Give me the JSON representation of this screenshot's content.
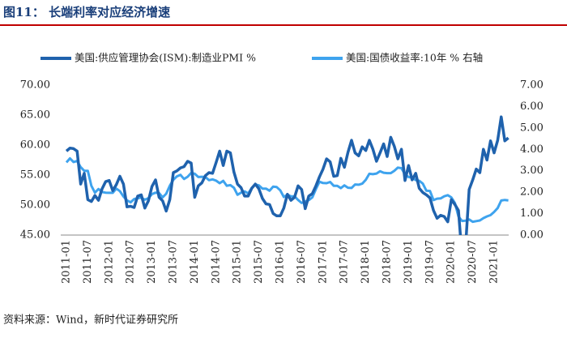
{
  "chart_data": {
    "type": "line",
    "title": "图11： 长端利率对应经济增速",
    "source": "资料来源：Wind，新时代证券研究所",
    "categories": [
      "2011-01",
      null,
      null,
      null,
      null,
      null,
      "2011-07",
      null,
      null,
      null,
      null,
      null,
      "2012-01",
      null,
      null,
      null,
      null,
      null,
      "2012-07",
      null,
      null,
      null,
      null,
      null,
      "2013-01",
      null,
      null,
      null,
      null,
      null,
      "2013-07",
      null,
      null,
      null,
      null,
      null,
      "2014-01",
      null,
      null,
      null,
      null,
      null,
      "2014-07",
      null,
      null,
      null,
      null,
      null,
      "2015-01",
      null,
      null,
      null,
      null,
      null,
      "2015-07",
      null,
      null,
      null,
      null,
      null,
      "2016-01",
      null,
      null,
      null,
      null,
      null,
      "2016-07",
      null,
      null,
      null,
      null,
      null,
      "2017-01",
      null,
      null,
      null,
      null,
      null,
      "2017-07",
      null,
      null,
      null,
      null,
      null,
      "2018-01",
      null,
      null,
      null,
      null,
      null,
      "2018-07",
      null,
      null,
      null,
      null,
      null,
      "2019-01",
      null,
      null,
      null,
      null,
      null,
      "2019-07",
      null,
      null,
      null,
      null,
      null,
      "2020-01",
      null,
      null,
      null,
      null,
      null,
      "2020-07",
      null,
      null,
      null,
      null,
      null,
      "2021-01",
      null,
      null,
      null,
      null
    ],
    "series": [
      {
        "name": "美国:供应管理协会(ISM):制造业PMI %",
        "color": "#1f62ad",
        "axis": "y",
        "values": [
          59.0,
          59.5,
          59.4,
          59.0,
          53.5,
          55.3,
          50.9,
          50.6,
          51.6,
          50.8,
          52.7,
          53.9,
          54.1,
          52.4,
          53.4,
          54.8,
          53.5,
          49.7,
          49.8,
          49.6,
          51.5,
          51.7,
          49.5,
          50.7,
          53.1,
          54.2,
          51.3,
          50.7,
          49.0,
          50.9,
          55.4,
          55.7,
          56.2,
          56.4,
          57.3,
          57.0,
          51.3,
          53.2,
          53.7,
          54.9,
          55.4,
          55.3,
          57.1,
          59.0,
          56.6,
          59.0,
          58.7,
          55.5,
          53.5,
          52.9,
          51.5,
          51.5,
          52.8,
          53.5,
          52.7,
          51.1,
          50.2,
          50.1,
          48.6,
          48.2,
          48.2,
          49.5,
          51.8,
          50.8,
          51.3,
          53.2,
          52.6,
          49.4,
          51.5,
          51.9,
          53.2,
          54.7,
          56.0,
          57.7,
          57.2,
          54.8,
          54.9,
          57.8,
          56.3,
          58.8,
          60.8,
          58.7,
          58.2,
          59.7,
          59.1,
          60.8,
          59.3,
          57.3,
          58.7,
          60.2,
          58.1,
          61.3,
          59.8,
          57.7,
          59.3,
          54.1,
          56.6,
          54.2,
          55.3,
          52.8,
          52.1,
          51.7,
          51.2,
          49.1,
          47.8,
          48.3,
          48.1,
          47.2,
          50.9,
          50.1,
          49.1,
          41.5,
          43.1,
          52.6,
          54.2,
          56.0,
          55.4,
          59.3,
          57.5,
          60.7,
          58.7,
          60.8,
          64.7,
          60.7,
          61.2
        ]
      },
      {
        "name": "美国:国债收益率:10年 % 右轴",
        "color": "#3ea3ee",
        "axis": "y2",
        "values": [
          3.39,
          3.58,
          3.41,
          3.46,
          3.17,
          3.0,
          3.0,
          2.3,
          1.98,
          2.15,
          2.01,
          1.98,
          1.97,
          1.97,
          2.17,
          2.05,
          1.8,
          1.62,
          1.53,
          1.68,
          1.72,
          1.75,
          1.65,
          1.72,
          1.91,
          1.98,
          1.96,
          1.76,
          1.93,
          2.3,
          2.58,
          2.74,
          2.81,
          2.62,
          2.72,
          2.9,
          2.86,
          2.71,
          2.72,
          2.71,
          2.56,
          2.6,
          2.54,
          2.42,
          2.53,
          2.3,
          2.33,
          2.21,
          1.88,
          1.98,
          2.04,
          1.94,
          2.2,
          2.36,
          2.32,
          2.17,
          2.17,
          2.07,
          2.26,
          2.24,
          2.09,
          1.78,
          1.89,
          1.81,
          1.81,
          1.64,
          1.5,
          1.56,
          1.63,
          1.76,
          2.14,
          2.49,
          2.43,
          2.42,
          2.48,
          2.3,
          2.3,
          2.19,
          2.32,
          2.21,
          2.2,
          2.36,
          2.35,
          2.4,
          2.58,
          2.86,
          2.84,
          2.87,
          2.98,
          2.91,
          2.89,
          2.89,
          3.0,
          3.15,
          3.12,
          2.83,
          2.71,
          2.68,
          2.57,
          2.53,
          2.4,
          2.07,
          2.06,
          1.63,
          1.7,
          1.71,
          1.81,
          1.86,
          1.76,
          1.5,
          0.87,
          0.66,
          0.67,
          0.73,
          0.62,
          0.65,
          0.68,
          0.79,
          0.87,
          0.93,
          1.08,
          1.26,
          1.61,
          1.64,
          1.62
        ]
      }
    ],
    "ylim": [
      45,
      70
    ],
    "yticks": [
      {
        "value": 45,
        "label": "45.00"
      },
      {
        "value": 50,
        "label": "50.00"
      },
      {
        "value": 55,
        "label": "55.00"
      },
      {
        "value": 60,
        "label": "60.00"
      },
      {
        "value": 65,
        "label": "65.00"
      },
      {
        "value": 70,
        "label": "70.00"
      }
    ],
    "y2lim": [
      0,
      7
    ],
    "y2ticks": [
      {
        "value": 0,
        "label": "0.00"
      },
      {
        "value": 1,
        "label": "1.00"
      },
      {
        "value": 2,
        "label": "2.00"
      },
      {
        "value": 3,
        "label": "3.00"
      },
      {
        "value": 4,
        "label": "4.00"
      },
      {
        "value": 5,
        "label": "5.00"
      },
      {
        "value": 6,
        "label": "6.00"
      },
      {
        "value": 7,
        "label": "7.00"
      }
    ],
    "grid": false
  }
}
